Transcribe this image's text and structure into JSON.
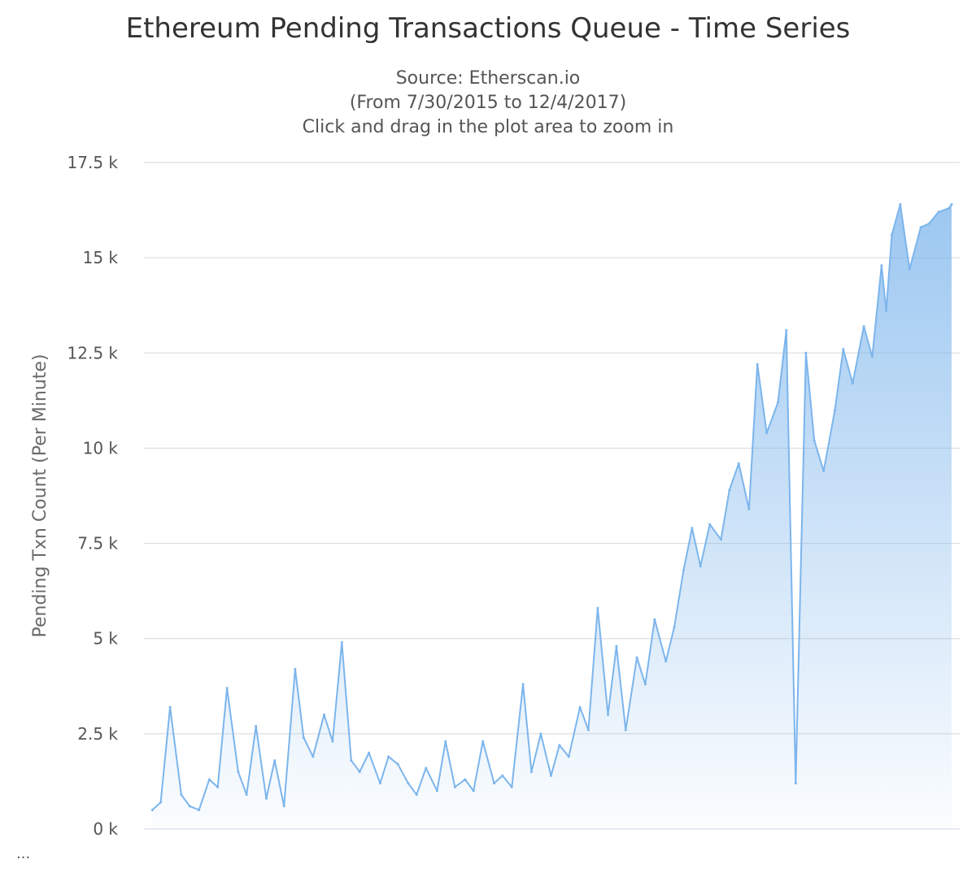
{
  "chart_data": {
    "type": "area",
    "title": "Ethereum Pending Transactions Queue - Time Series",
    "subtitle_lines": [
      "Source: Etherscan.io",
      "(From 7/30/2015 to 12/4/2017)",
      "Click and drag in the plot area to zoom in"
    ],
    "ylabel": "Pending Txn Count (Per Minute)",
    "xlabel": "",
    "x_start": "2015-07-30",
    "x_end": "2017-12-04",
    "ylim": [
      0,
      17500
    ],
    "yticks": [
      0,
      2500,
      5000,
      7500,
      10000,
      12500,
      15000,
      17500
    ],
    "ytick_labels": [
      "0 k",
      "2.5 k",
      "5 k",
      "7.5 k",
      "10 k",
      "12.5 k",
      "15 k",
      "17.5 k"
    ],
    "grid": true,
    "legend": false,
    "series": [
      {
        "color": "#7cb5ec",
        "x": [
          "2015-08-01",
          "2015-08-10",
          "2015-08-20",
          "2015-09-01",
          "2015-09-10",
          "2015-09-20",
          "2015-10-01",
          "2015-10-10",
          "2015-10-20",
          "2015-11-01",
          "2015-11-10",
          "2015-11-20",
          "2015-12-01",
          "2015-12-10",
          "2015-12-20",
          "2016-01-01",
          "2016-01-10",
          "2016-01-20",
          "2016-02-01",
          "2016-02-10",
          "2016-02-20",
          "2016-03-01",
          "2016-03-10",
          "2016-03-20",
          "2016-04-01",
          "2016-04-10",
          "2016-04-20",
          "2016-05-01",
          "2016-05-10",
          "2016-05-20",
          "2016-06-01",
          "2016-06-10",
          "2016-06-20",
          "2016-07-01",
          "2016-07-10",
          "2016-07-20",
          "2016-08-01",
          "2016-08-10",
          "2016-08-20",
          "2016-09-01",
          "2016-09-10",
          "2016-09-20",
          "2016-10-01",
          "2016-10-10",
          "2016-10-20",
          "2016-11-01",
          "2016-11-10",
          "2016-11-20",
          "2016-12-01",
          "2016-12-10",
          "2016-12-20",
          "2017-01-01",
          "2017-01-10",
          "2017-01-20",
          "2017-02-01",
          "2017-02-10",
          "2017-02-20",
          "2017-03-01",
          "2017-03-10",
          "2017-03-20",
          "2017-04-01",
          "2017-04-10",
          "2017-04-20",
          "2017-05-01",
          "2017-05-10",
          "2017-05-20",
          "2017-06-01",
          "2017-06-10",
          "2017-06-20",
          "2017-07-01",
          "2017-07-10",
          "2017-07-20",
          "2017-08-01",
          "2017-08-10",
          "2017-08-20",
          "2017-09-01",
          "2017-09-10",
          "2017-09-20",
          "2017-09-25",
          "2017-10-01",
          "2017-10-10",
          "2017-10-20",
          "2017-11-01",
          "2017-11-10",
          "2017-11-20",
          "2017-12-01",
          "2017-12-04"
        ],
        "values": [
          500,
          700,
          3200,
          900,
          600,
          500,
          1300,
          1100,
          3700,
          1500,
          900,
          2700,
          800,
          1800,
          600,
          4200,
          2400,
          1900,
          3000,
          2300,
          4900,
          1800,
          1500,
          2000,
          1200,
          1900,
          1700,
          1200,
          900,
          1600,
          1000,
          2300,
          1100,
          1300,
          1000,
          2300,
          1200,
          1400,
          1100,
          3800,
          1500,
          2500,
          1400,
          2200,
          1900,
          3200,
          2600,
          5800,
          3000,
          4800,
          2600,
          4500,
          3800,
          5500,
          4400,
          5300,
          6800,
          7900,
          6900,
          8000,
          7600,
          8900,
          9600,
          8400,
          12200,
          10400,
          11200,
          13100,
          1200,
          12500,
          10200,
          9400,
          11000,
          12600,
          11700,
          13200,
          12400,
          14800,
          13600,
          15600,
          16400,
          14700,
          15800,
          15900,
          16200,
          16300,
          16400
        ]
      }
    ]
  },
  "footer": {
    "ellipsis": "..."
  }
}
